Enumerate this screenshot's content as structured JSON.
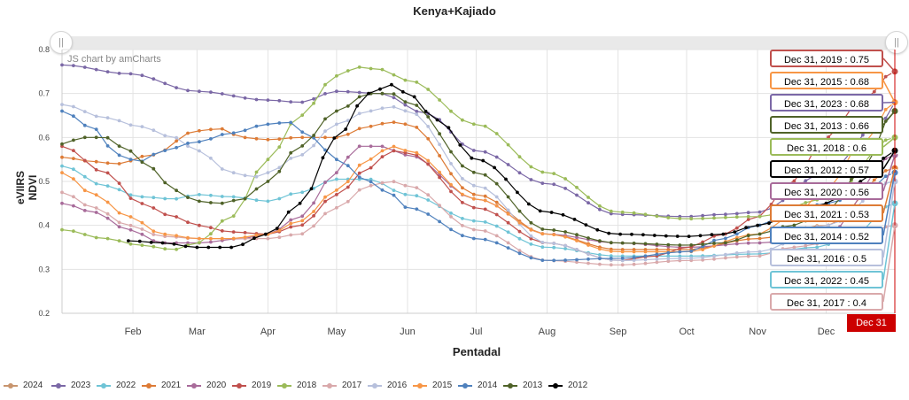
{
  "title": "Kenya+Kajiado",
  "credit": "JS chart by amCharts",
  "scrollbar": {
    "grip_left": "||",
    "grip_right": "||"
  },
  "chart_data": {
    "type": "line",
    "title": "Kenya+Kajiado",
    "xlabel": "Pentadal",
    "ylabel": "eVIIRS NDVI",
    "ylim": [
      0.2,
      0.8
    ],
    "yticks": [
      "0.2",
      "0.3",
      "0.4",
      "0.5",
      "0.6",
      "0.7",
      "0.8"
    ],
    "x_tick_labels": [
      "Feb",
      "Mar",
      "Apr",
      "May",
      "Jun",
      "Jul",
      "Aug",
      "Sep",
      "Oct",
      "Nov",
      "Dec"
    ],
    "x_unit": "day of year",
    "x_ticks_day": [
      32,
      60,
      91,
      121,
      152,
      182,
      213,
      244,
      274,
      305,
      335
    ],
    "xlim": [
      1,
      365
    ],
    "grid": true,
    "legend_position": "bottom",
    "series": [
      {
        "name": "2024",
        "color": "#c8956e",
        "knots": [],
        "end": null
      },
      {
        "name": "2023",
        "color": "#7b68a6",
        "knots": [
          [
            1,
            0.765
          ],
          [
            30,
            0.745
          ],
          [
            60,
            0.705
          ],
          [
            91,
            0.685
          ],
          [
            105,
            0.68
          ],
          [
            121,
            0.705
          ],
          [
            140,
            0.7
          ],
          [
            160,
            0.655
          ],
          [
            182,
            0.57
          ],
          [
            213,
            0.495
          ],
          [
            244,
            0.425
          ],
          [
            274,
            0.42
          ],
          [
            290,
            0.425
          ],
          [
            305,
            0.43
          ],
          [
            335,
            0.52
          ],
          [
            360,
            0.64
          ],
          [
            365,
            0.68
          ]
        ],
        "end": 0.68
      },
      {
        "name": "2022",
        "color": "#6fc4d6",
        "knots": [
          [
            1,
            0.535
          ],
          [
            20,
            0.49
          ],
          [
            35,
            0.465
          ],
          [
            50,
            0.46
          ],
          [
            60,
            0.47
          ],
          [
            75,
            0.465
          ],
          [
            91,
            0.455
          ],
          [
            105,
            0.475
          ],
          [
            121,
            0.505
          ],
          [
            135,
            0.505
          ],
          [
            152,
            0.47
          ],
          [
            182,
            0.41
          ],
          [
            213,
            0.35
          ],
          [
            244,
            0.33
          ],
          [
            274,
            0.33
          ],
          [
            305,
            0.335
          ],
          [
            330,
            0.35
          ],
          [
            345,
            0.37
          ],
          [
            365,
            0.45
          ]
        ],
        "end": 0.45
      },
      {
        "name": "2021",
        "color": "#dd7b36",
        "knots": [
          [
            1,
            0.555
          ],
          [
            15,
            0.545
          ],
          [
            25,
            0.54
          ],
          [
            40,
            0.56
          ],
          [
            60,
            0.615
          ],
          [
            70,
            0.62
          ],
          [
            80,
            0.6
          ],
          [
            91,
            0.595
          ],
          [
            105,
            0.6
          ],
          [
            121,
            0.6
          ],
          [
            135,
            0.625
          ],
          [
            145,
            0.635
          ],
          [
            152,
            0.63
          ],
          [
            182,
            0.47
          ],
          [
            213,
            0.38
          ],
          [
            244,
            0.345
          ],
          [
            274,
            0.345
          ],
          [
            305,
            0.37
          ],
          [
            335,
            0.4
          ],
          [
            365,
            0.53
          ]
        ],
        "end": 0.53
      },
      {
        "name": "2020",
        "color": "#a86b9a",
        "knots": [
          [
            1,
            0.45
          ],
          [
            15,
            0.43
          ],
          [
            30,
            0.39
          ],
          [
            45,
            0.36
          ],
          [
            60,
            0.36
          ],
          [
            80,
            0.37
          ],
          [
            91,
            0.38
          ],
          [
            105,
            0.42
          ],
          [
            121,
            0.52
          ],
          [
            130,
            0.58
          ],
          [
            140,
            0.58
          ],
          [
            152,
            0.56
          ],
          [
            182,
            0.46
          ],
          [
            213,
            0.38
          ],
          [
            244,
            0.36
          ],
          [
            274,
            0.35
          ],
          [
            305,
            0.36
          ],
          [
            335,
            0.38
          ],
          [
            365,
            0.56
          ]
        ],
        "end": 0.56
      },
      {
        "name": "2019",
        "color": "#c0504d",
        "knots": [
          [
            1,
            0.58
          ],
          [
            20,
            0.52
          ],
          [
            35,
            0.45
          ],
          [
            50,
            0.42
          ],
          [
            60,
            0.4
          ],
          [
            75,
            0.385
          ],
          [
            91,
            0.38
          ],
          [
            105,
            0.4
          ],
          [
            121,
            0.47
          ],
          [
            135,
            0.53
          ],
          [
            145,
            0.57
          ],
          [
            152,
            0.565
          ],
          [
            182,
            0.44
          ],
          [
            213,
            0.36
          ],
          [
            244,
            0.32
          ],
          [
            260,
            0.33
          ],
          [
            274,
            0.35
          ],
          [
            290,
            0.38
          ],
          [
            305,
            0.42
          ],
          [
            320,
            0.5
          ],
          [
            335,
            0.6
          ],
          [
            350,
            0.68
          ],
          [
            365,
            0.75
          ]
        ],
        "end": 0.75
      },
      {
        "name": "2018",
        "color": "#9bbb59",
        "knots": [
          [
            1,
            0.39
          ],
          [
            20,
            0.37
          ],
          [
            35,
            0.355
          ],
          [
            50,
            0.345
          ],
          [
            60,
            0.36
          ],
          [
            75,
            0.42
          ],
          [
            91,
            0.55
          ],
          [
            105,
            0.65
          ],
          [
            121,
            0.74
          ],
          [
            130,
            0.76
          ],
          [
            140,
            0.755
          ],
          [
            152,
            0.73
          ],
          [
            182,
            0.63
          ],
          [
            213,
            0.52
          ],
          [
            244,
            0.43
          ],
          [
            274,
            0.415
          ],
          [
            305,
            0.42
          ],
          [
            335,
            0.46
          ],
          [
            365,
            0.6
          ]
        ],
        "end": 0.6
      },
      {
        "name": "2017",
        "color": "#d9a9ab",
        "knots": [
          [
            1,
            0.475
          ],
          [
            15,
            0.44
          ],
          [
            30,
            0.4
          ],
          [
            45,
            0.375
          ],
          [
            60,
            0.37
          ],
          [
            80,
            0.37
          ],
          [
            91,
            0.37
          ],
          [
            105,
            0.38
          ],
          [
            121,
            0.44
          ],
          [
            135,
            0.49
          ],
          [
            145,
            0.5
          ],
          [
            152,
            0.49
          ],
          [
            182,
            0.39
          ],
          [
            213,
            0.32
          ],
          [
            244,
            0.31
          ],
          [
            274,
            0.32
          ],
          [
            305,
            0.33
          ],
          [
            320,
            0.35
          ],
          [
            335,
            0.36
          ],
          [
            350,
            0.38
          ],
          [
            365,
            0.4
          ]
        ],
        "end": 0.4
      },
      {
        "name": "2016",
        "color": "#b7c0dc",
        "knots": [
          [
            1,
            0.675
          ],
          [
            20,
            0.645
          ],
          [
            35,
            0.625
          ],
          [
            50,
            0.6
          ],
          [
            60,
            0.57
          ],
          [
            75,
            0.52
          ],
          [
            85,
            0.51
          ],
          [
            91,
            0.52
          ],
          [
            105,
            0.56
          ],
          [
            121,
            0.63
          ],
          [
            135,
            0.66
          ],
          [
            145,
            0.67
          ],
          [
            152,
            0.66
          ],
          [
            182,
            0.49
          ],
          [
            213,
            0.36
          ],
          [
            244,
            0.32
          ],
          [
            274,
            0.325
          ],
          [
            305,
            0.34
          ],
          [
            335,
            0.4
          ],
          [
            365,
            0.5
          ]
        ],
        "end": 0.5
      },
      {
        "name": "2015",
        "color": "#f79646",
        "knots": [
          [
            1,
            0.52
          ],
          [
            15,
            0.47
          ],
          [
            30,
            0.42
          ],
          [
            45,
            0.38
          ],
          [
            60,
            0.37
          ],
          [
            75,
            0.37
          ],
          [
            91,
            0.38
          ],
          [
            105,
            0.41
          ],
          [
            121,
            0.48
          ],
          [
            135,
            0.55
          ],
          [
            145,
            0.58
          ],
          [
            152,
            0.57
          ],
          [
            182,
            0.46
          ],
          [
            213,
            0.38
          ],
          [
            244,
            0.34
          ],
          [
            274,
            0.34
          ],
          [
            305,
            0.38
          ],
          [
            320,
            0.42
          ],
          [
            335,
            0.48
          ],
          [
            350,
            0.58
          ],
          [
            365,
            0.68
          ]
        ],
        "end": 0.68
      },
      {
        "name": "2014",
        "color": "#4f81bd",
        "knots": [
          [
            1,
            0.66
          ],
          [
            15,
            0.62
          ],
          [
            25,
            0.56
          ],
          [
            35,
            0.545
          ],
          [
            45,
            0.57
          ],
          [
            60,
            0.59
          ],
          [
            75,
            0.61
          ],
          [
            91,
            0.63
          ],
          [
            100,
            0.635
          ],
          [
            110,
            0.6
          ],
          [
            121,
            0.55
          ],
          [
            135,
            0.5
          ],
          [
            145,
            0.47
          ],
          [
            152,
            0.44
          ],
          [
            182,
            0.37
          ],
          [
            213,
            0.32
          ],
          [
            244,
            0.325
          ],
          [
            274,
            0.34
          ],
          [
            290,
            0.37
          ],
          [
            305,
            0.4
          ],
          [
            320,
            0.43
          ],
          [
            335,
            0.45
          ],
          [
            350,
            0.47
          ],
          [
            365,
            0.52
          ]
        ],
        "end": 0.52
      },
      {
        "name": "2013",
        "color": "#4f6228",
        "knots": [
          [
            1,
            0.585
          ],
          [
            10,
            0.6
          ],
          [
            20,
            0.6
          ],
          [
            30,
            0.57
          ],
          [
            40,
            0.53
          ],
          [
            50,
            0.48
          ],
          [
            60,
            0.455
          ],
          [
            70,
            0.45
          ],
          [
            80,
            0.46
          ],
          [
            91,
            0.5
          ],
          [
            105,
            0.58
          ],
          [
            121,
            0.66
          ],
          [
            135,
            0.7
          ],
          [
            145,
            0.7
          ],
          [
            152,
            0.68
          ],
          [
            182,
            0.52
          ],
          [
            213,
            0.39
          ],
          [
            244,
            0.36
          ],
          [
            274,
            0.355
          ],
          [
            290,
            0.36
          ],
          [
            305,
            0.38
          ],
          [
            320,
            0.4
          ],
          [
            335,
            0.43
          ],
          [
            350,
            0.52
          ],
          [
            365,
            0.66
          ]
        ],
        "end": 0.66
      },
      {
        "name": "2012",
        "color": "#000000",
        "knots": [
          [
            30,
            0.365
          ],
          [
            45,
            0.36
          ],
          [
            60,
            0.35
          ],
          [
            75,
            0.35
          ],
          [
            91,
            0.38
          ],
          [
            105,
            0.45
          ],
          [
            121,
            0.6
          ],
          [
            135,
            0.7
          ],
          [
            145,
            0.72
          ],
          [
            152,
            0.7
          ],
          [
            165,
            0.64
          ],
          [
            182,
            0.55
          ],
          [
            213,
            0.43
          ],
          [
            244,
            0.38
          ],
          [
            274,
            0.375
          ],
          [
            290,
            0.38
          ],
          [
            305,
            0.4
          ],
          [
            320,
            0.42
          ],
          [
            335,
            0.45
          ],
          [
            350,
            0.5
          ],
          [
            365,
            0.57
          ]
        ],
        "end": 0.57
      }
    ]
  },
  "tooltips": [
    {
      "label": "Dec 31, 2019 : 0.75",
      "color": "#c0504d"
    },
    {
      "label": "Dec 31, 2015 : 0.68",
      "color": "#f79646"
    },
    {
      "label": "Dec 31, 2023 : 0.68",
      "color": "#7b68a6"
    },
    {
      "label": "Dec 31, 2013 : 0.66",
      "color": "#4f6228"
    },
    {
      "label": "Dec 31, 2018 : 0.6",
      "color": "#9bbb59"
    },
    {
      "label": "Dec 31, 2012 : 0.57",
      "color": "#000000"
    },
    {
      "label": "Dec 31, 2020 : 0.56",
      "color": "#a86b9a"
    },
    {
      "label": "Dec 31, 2021 : 0.53",
      "color": "#dd7b36"
    },
    {
      "label": "Dec 31, 2014 : 0.52",
      "color": "#4f81bd"
    },
    {
      "label": "Dec 31, 2016 : 0.5",
      "color": "#b7c0dc"
    },
    {
      "label": "Dec 31, 2022 : 0.45",
      "color": "#6fc4d6"
    },
    {
      "label": "Dec 31, 2017 : 0.4",
      "color": "#d9a9ab"
    }
  ],
  "cursor_label": "Dec 31"
}
